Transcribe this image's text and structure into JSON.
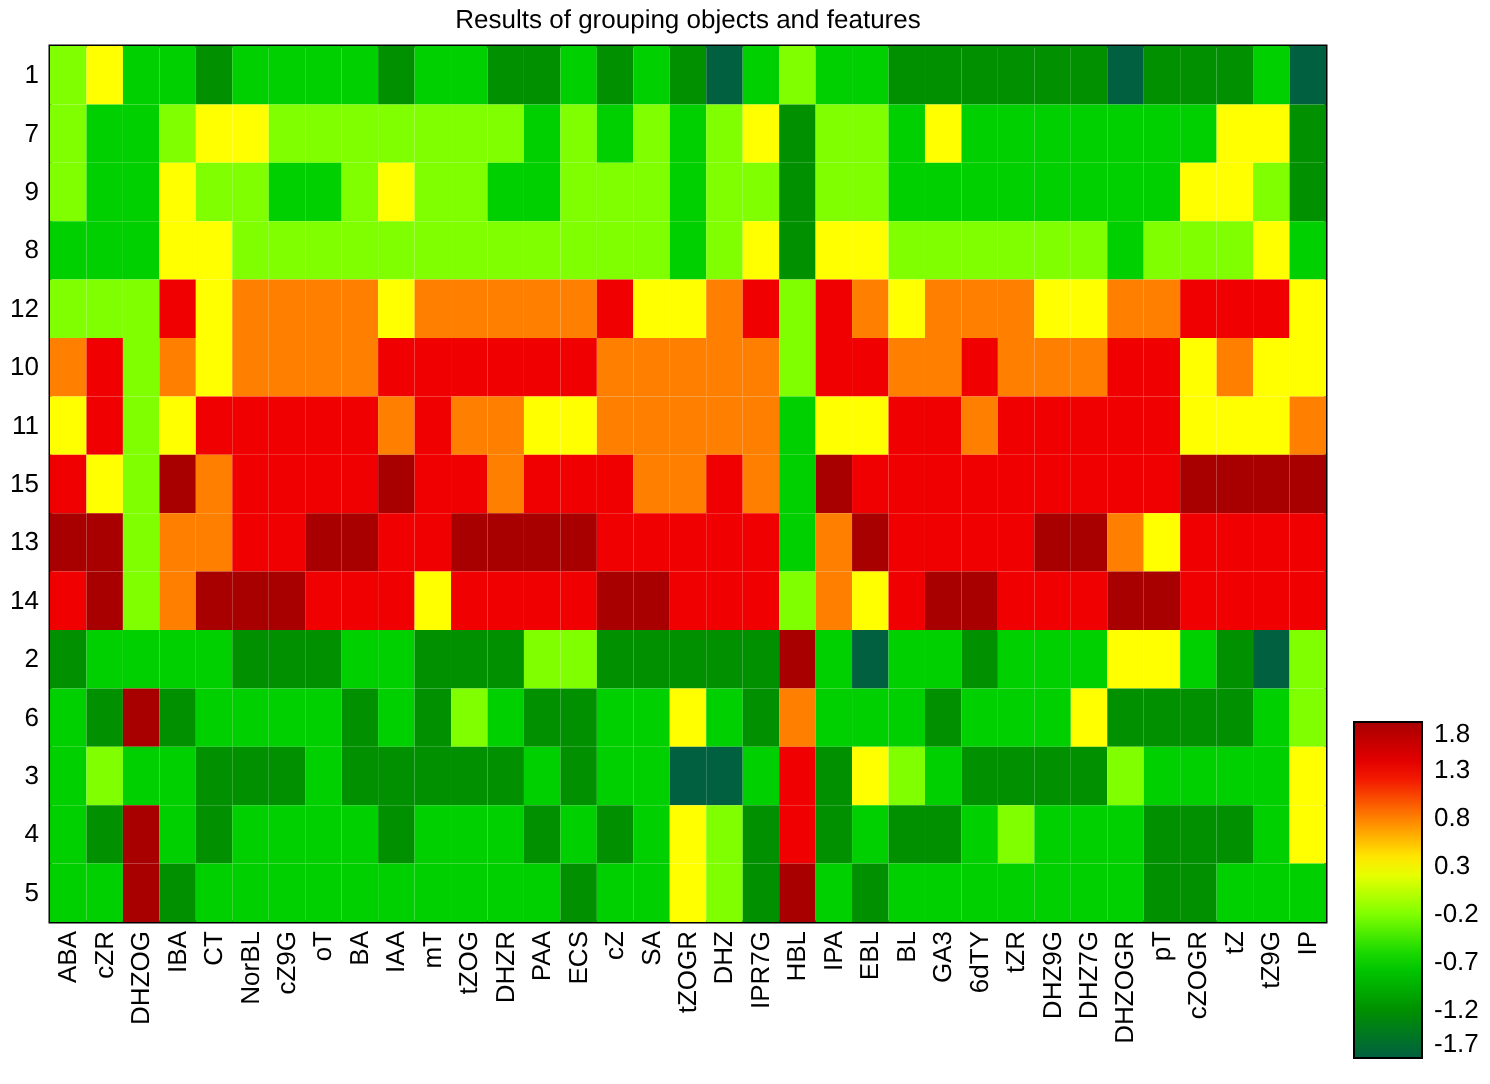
{
  "chart_data": {
    "type": "heatmap",
    "title": "Results of grouping objects and features",
    "categories": [
      "ABA",
      "cZR",
      "DHZOG",
      "IBA",
      "CT",
      "NorBL",
      "cZ9G",
      "oT",
      "BA",
      "IAA",
      "mT",
      "tZOG",
      "DHZR",
      "PAA",
      "ECS",
      "cZ",
      "SA",
      "tZOGR",
      "DHZ",
      "IPR7G",
      "HBL",
      "IPA",
      "EBL",
      "BL",
      "GA3",
      "6dTY",
      "tZR",
      "DHZ9G",
      "DHZ7G",
      "DHZOGR",
      "pT",
      "cZOGR",
      "tZ",
      "tZ9G",
      "IP"
    ],
    "y_categories": [
      "1",
      "7",
      "9",
      "8",
      "12",
      "10",
      "11",
      "15",
      "13",
      "14",
      "2",
      "6",
      "3",
      "4",
      "5"
    ],
    "cticks": [
      1.8,
      1.3,
      0.8,
      0.3,
      -0.2,
      -0.7,
      -1.2,
      -1.7
    ],
    "colors": [
      "#a80000",
      "#f00000",
      "#ff8000",
      "#ffff00",
      "#80ff00",
      "#00d000",
      "#009000",
      "#006040"
    ],
    "cells": [
      [
        -0.2,
        0.3,
        -0.7,
        -0.7,
        -1.2,
        -0.7,
        -0.7,
        -0.7,
        -0.7,
        -1.2,
        -0.7,
        -0.7,
        -1.2,
        -1.2,
        -0.7,
        -1.2,
        -0.7,
        -1.2,
        -1.7,
        -0.7,
        -0.2,
        -0.7,
        -0.7,
        -1.2,
        -1.2,
        -1.2,
        -1.2,
        -1.2,
        -1.2,
        -1.7,
        -1.2,
        -1.2,
        -1.2,
        -0.7,
        -1.7
      ],
      [
        -0.2,
        -0.7,
        -0.7,
        -0.2,
        0.3,
        0.3,
        -0.2,
        -0.2,
        -0.2,
        -0.2,
        -0.2,
        -0.2,
        -0.2,
        -0.7,
        -0.2,
        -0.7,
        -0.2,
        -0.7,
        -0.2,
        0.3,
        -1.2,
        -0.2,
        -0.2,
        -0.7,
        0.3,
        -0.7,
        -0.7,
        -0.7,
        -0.7,
        -0.7,
        -0.7,
        -0.7,
        0.3,
        0.3,
        -1.2
      ],
      [
        -0.2,
        -0.7,
        -0.7,
        0.3,
        -0.2,
        -0.2,
        -0.7,
        -0.7,
        -0.2,
        0.3,
        -0.2,
        -0.2,
        -0.7,
        -0.7,
        -0.2,
        -0.2,
        -0.2,
        -0.7,
        -0.2,
        -0.2,
        -1.2,
        -0.2,
        -0.2,
        -0.7,
        -0.7,
        -0.7,
        -0.7,
        -0.7,
        -0.7,
        -0.7,
        -0.7,
        0.3,
        0.3,
        -0.2,
        -1.2
      ],
      [
        -0.7,
        -0.7,
        -0.7,
        0.3,
        0.3,
        -0.2,
        -0.2,
        -0.2,
        -0.2,
        -0.2,
        -0.2,
        -0.2,
        -0.2,
        -0.2,
        -0.2,
        -0.2,
        -0.2,
        -0.7,
        -0.2,
        0.3,
        -1.2,
        0.3,
        0.3,
        -0.2,
        -0.2,
        -0.2,
        -0.2,
        -0.2,
        -0.2,
        -0.7,
        -0.2,
        -0.2,
        -0.2,
        0.3,
        -0.7
      ],
      [
        -0.2,
        -0.2,
        -0.2,
        1.3,
        0.3,
        0.8,
        0.8,
        0.8,
        0.8,
        0.3,
        0.8,
        0.8,
        0.8,
        0.8,
        0.8,
        1.3,
        0.3,
        0.3,
        0.8,
        1.3,
        -0.2,
        1.3,
        0.8,
        0.3,
        0.8,
        0.8,
        0.8,
        0.3,
        0.3,
        0.8,
        0.8,
        1.3,
        1.3,
        1.3,
        0.3
      ],
      [
        0.8,
        1.3,
        -0.2,
        0.8,
        0.3,
        0.8,
        0.8,
        0.8,
        0.8,
        1.3,
        1.3,
        1.3,
        1.3,
        1.3,
        1.3,
        0.8,
        0.8,
        0.8,
        0.8,
        0.8,
        -0.2,
        1.3,
        1.3,
        0.8,
        0.8,
        1.3,
        0.8,
        0.8,
        0.8,
        1.3,
        1.3,
        0.3,
        0.8,
        0.3,
        0.3
      ],
      [
        0.3,
        1.3,
        -0.2,
        0.3,
        1.3,
        1.3,
        1.3,
        1.3,
        1.3,
        0.8,
        1.3,
        0.8,
        0.8,
        0.3,
        0.3,
        0.8,
        0.8,
        0.8,
        0.8,
        0.8,
        -0.7,
        0.3,
        0.3,
        1.3,
        1.3,
        0.8,
        1.3,
        1.3,
        1.3,
        1.3,
        1.3,
        0.3,
        0.3,
        0.3,
        0.8
      ],
      [
        1.3,
        0.3,
        -0.2,
        1.8,
        0.8,
        1.3,
        1.3,
        1.3,
        1.3,
        1.8,
        1.3,
        1.3,
        0.8,
        1.3,
        1.3,
        1.3,
        0.8,
        0.8,
        1.3,
        0.8,
        -0.7,
        1.8,
        1.3,
        1.3,
        1.3,
        1.3,
        1.3,
        1.3,
        1.3,
        1.3,
        1.3,
        1.8,
        1.8,
        1.8,
        1.8
      ],
      [
        1.8,
        1.8,
        -0.2,
        0.8,
        0.8,
        1.3,
        1.3,
        1.8,
        1.8,
        1.3,
        1.3,
        1.8,
        1.8,
        1.8,
        1.8,
        1.3,
        1.3,
        1.3,
        1.3,
        1.3,
        -0.7,
        0.8,
        1.8,
        1.3,
        1.3,
        1.3,
        1.3,
        1.8,
        1.8,
        0.8,
        0.3,
        1.3,
        1.3,
        1.3,
        1.3
      ],
      [
        1.3,
        1.8,
        -0.2,
        0.8,
        1.8,
        1.8,
        1.8,
        1.3,
        1.3,
        1.3,
        0.3,
        1.3,
        1.3,
        1.3,
        1.3,
        1.8,
        1.8,
        1.3,
        1.3,
        1.3,
        -0.2,
        0.8,
        0.3,
        1.3,
        1.8,
        1.8,
        1.3,
        1.3,
        1.3,
        1.8,
        1.8,
        1.3,
        1.3,
        1.3,
        1.3
      ],
      [
        -1.2,
        -0.7,
        -0.7,
        -0.7,
        -0.7,
        -1.2,
        -1.2,
        -1.2,
        -0.7,
        -0.7,
        -1.2,
        -1.2,
        -1.2,
        -0.2,
        -0.2,
        -1.2,
        -1.2,
        -1.2,
        -1.2,
        -1.2,
        1.8,
        -0.7,
        -1.7,
        -0.7,
        -0.7,
        -1.2,
        -0.7,
        -0.7,
        -0.7,
        0.3,
        0.3,
        -0.7,
        -1.2,
        -1.7,
        -0.2
      ],
      [
        -0.7,
        -1.2,
        1.8,
        -1.2,
        -0.7,
        -0.7,
        -0.7,
        -0.7,
        -1.2,
        -0.7,
        -1.2,
        -0.2,
        -0.7,
        -1.2,
        -1.2,
        -0.7,
        -0.7,
        0.3,
        -0.7,
        -1.2,
        0.8,
        -0.7,
        -0.7,
        -0.7,
        -1.2,
        -0.7,
        -0.7,
        -0.7,
        0.3,
        -1.2,
        -1.2,
        -1.2,
        -1.2,
        -0.7,
        -0.2
      ],
      [
        -0.7,
        -0.2,
        -0.7,
        -0.7,
        -1.2,
        -1.2,
        -1.2,
        -0.7,
        -1.2,
        -1.2,
        -1.2,
        -1.2,
        -1.2,
        -0.7,
        -1.2,
        -0.7,
        -0.7,
        -1.7,
        -1.7,
        -0.7,
        1.3,
        -1.2,
        0.3,
        -0.2,
        -0.7,
        -1.2,
        -1.2,
        -1.2,
        -1.2,
        -0.2,
        -0.7,
        -0.7,
        -0.7,
        -0.7,
        0.3
      ],
      [
        -0.7,
        -1.2,
        1.8,
        -0.7,
        -1.2,
        -0.7,
        -0.7,
        -0.7,
        -0.7,
        -1.2,
        -0.7,
        -0.7,
        -0.7,
        -1.2,
        -0.7,
        -1.2,
        -0.7,
        0.3,
        -0.2,
        -1.2,
        1.3,
        -1.2,
        -0.7,
        -1.2,
        -1.2,
        -0.7,
        -0.2,
        -0.7,
        -0.7,
        -0.7,
        -1.2,
        -1.2,
        -1.2,
        -0.7,
        0.3
      ],
      [
        -0.7,
        -0.7,
        1.8,
        -1.2,
        -0.7,
        -0.7,
        -0.7,
        -0.7,
        -0.7,
        -0.7,
        -0.7,
        -0.7,
        -0.7,
        -0.7,
        -1.2,
        -0.7,
        -0.7,
        0.3,
        -0.2,
        -1.2,
        1.8,
        -0.7,
        -1.2,
        -0.7,
        -0.7,
        -0.7,
        -0.7,
        -0.7,
        -0.7,
        -0.7,
        -1.2,
        -1.2,
        -0.7,
        -0.7,
        -0.7
      ]
    ]
  }
}
